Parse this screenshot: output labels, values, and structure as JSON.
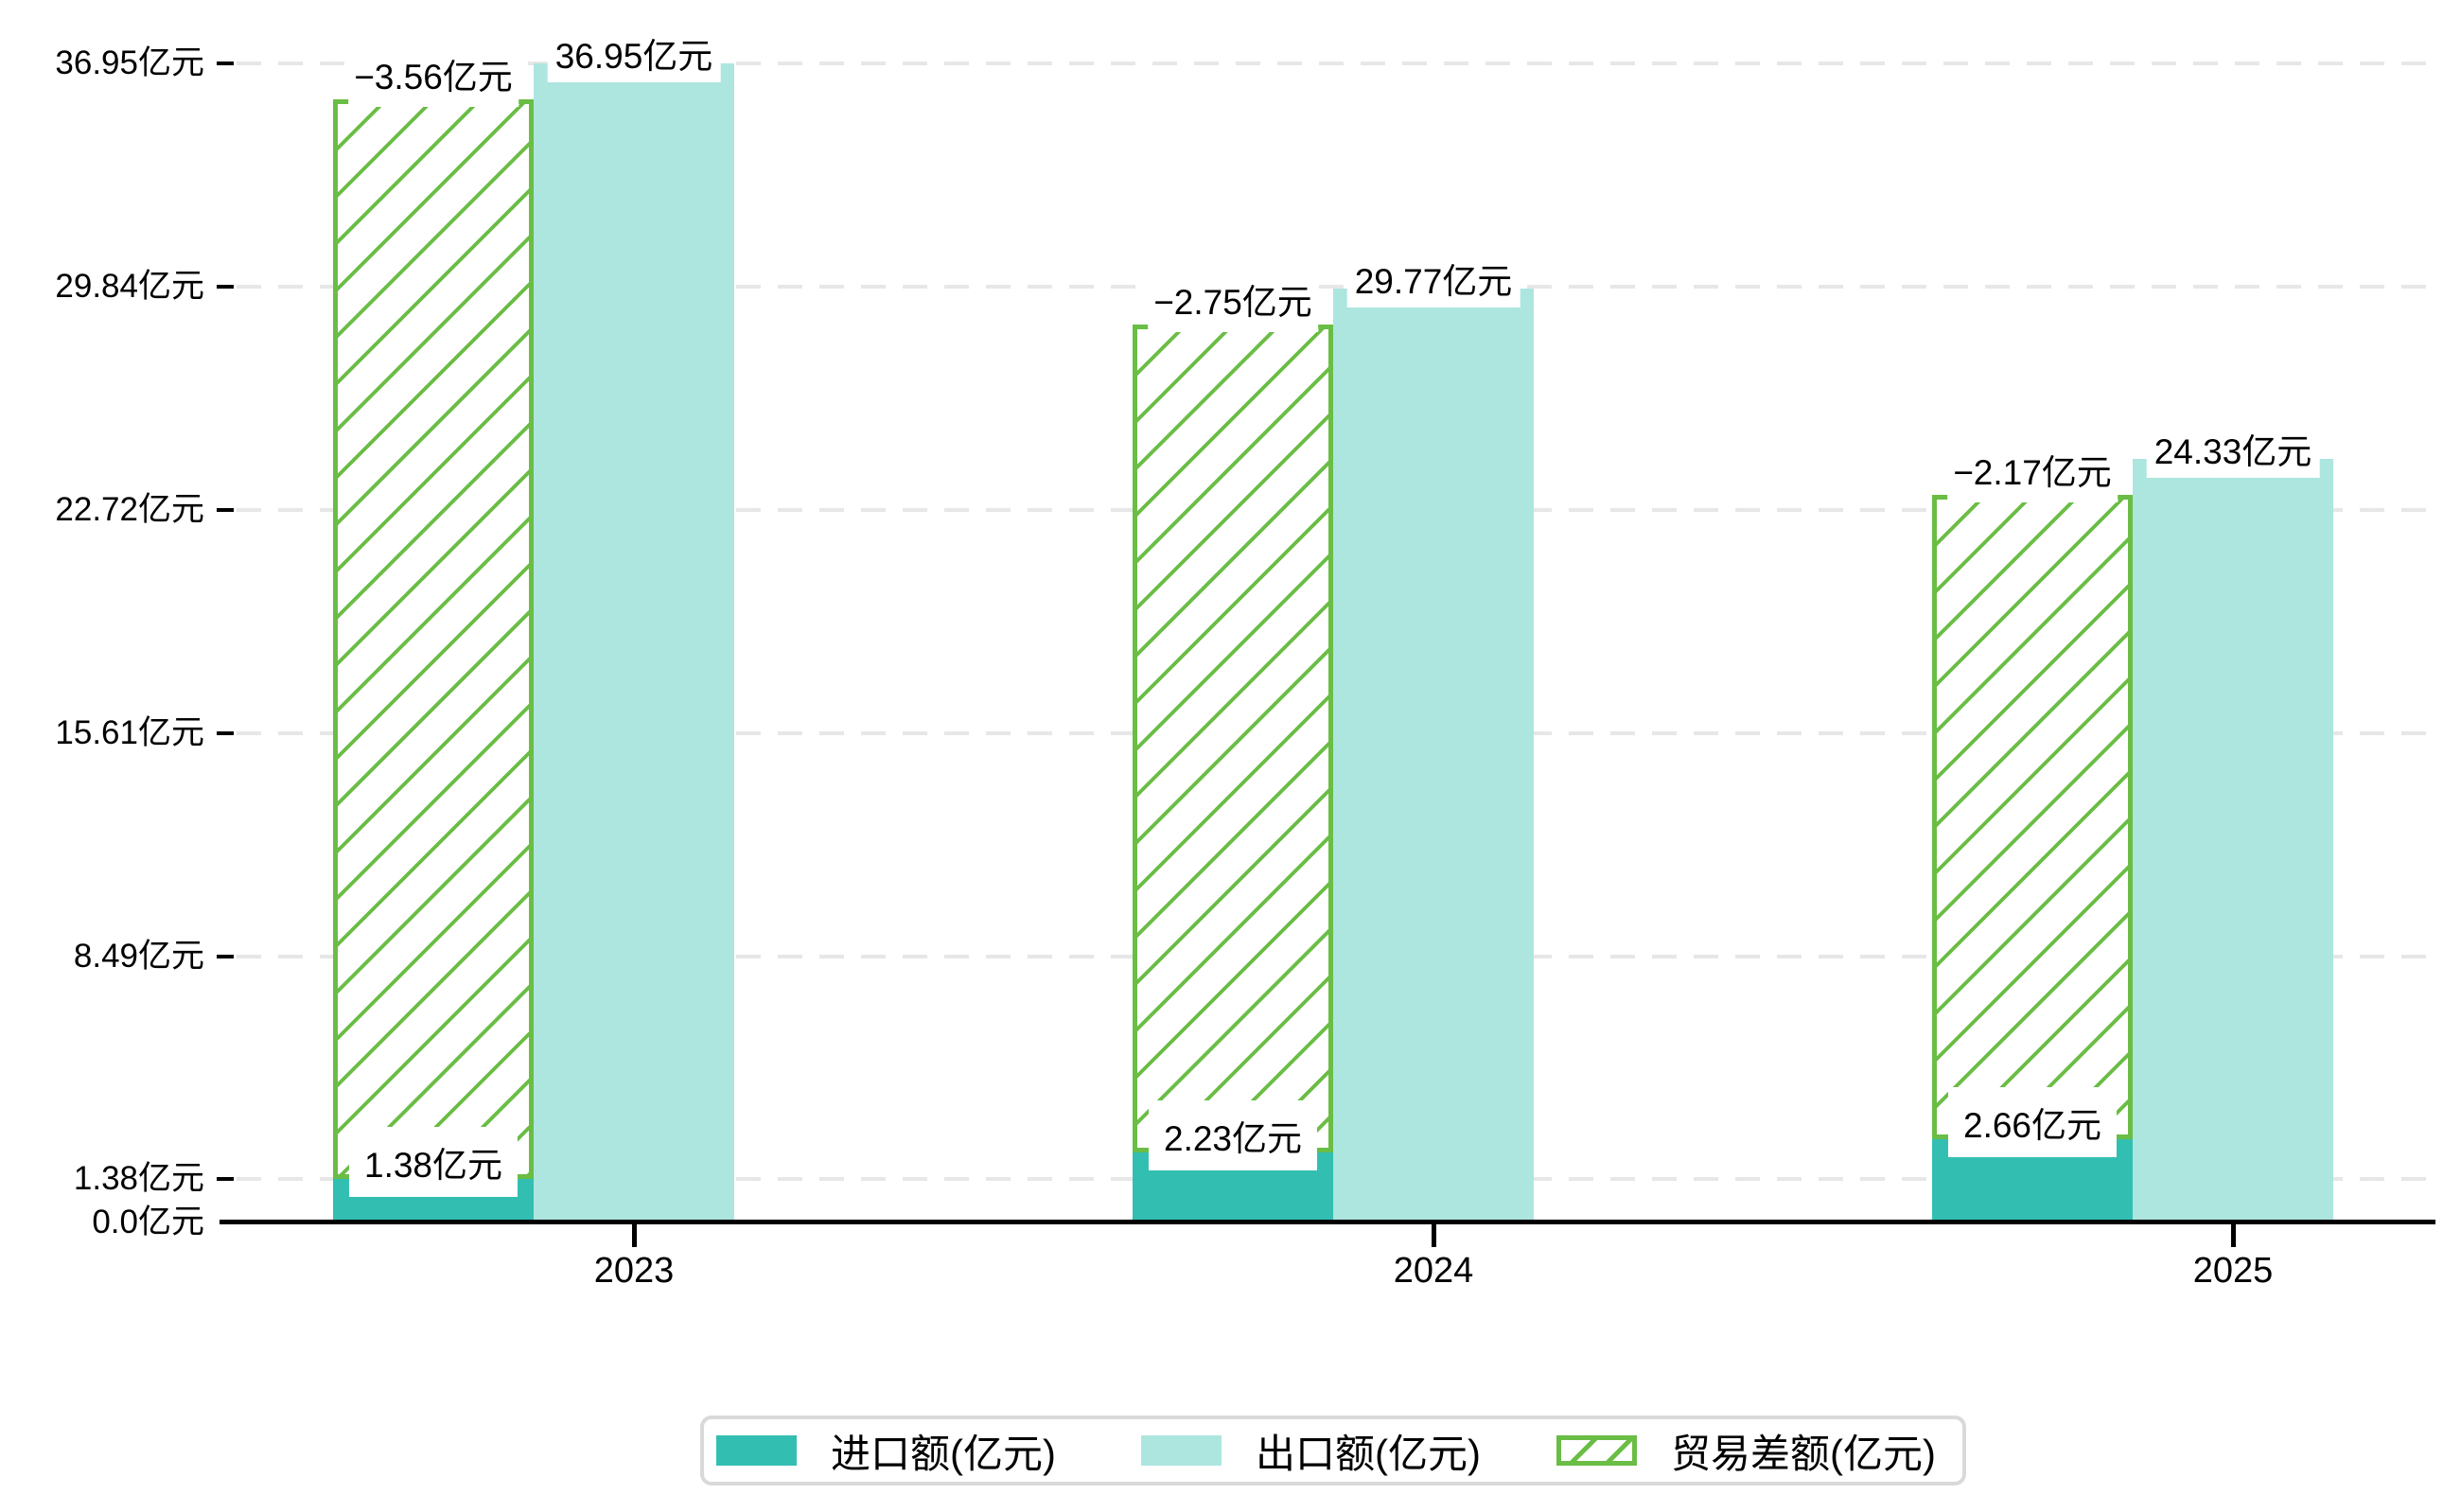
{
  "chart_data": {
    "type": "bar",
    "categories": [
      "2023",
      "2024",
      "2025"
    ],
    "unit": "亿元",
    "series": [
      {
        "name": "进口额(亿元)",
        "role": "import",
        "color": "#32bfb2",
        "values": [
          1.38,
          2.23,
          2.66
        ],
        "labels": [
          "1.38亿元",
          "2.23亿元",
          "2.66亿元"
        ]
      },
      {
        "name": "出口额(亿元)",
        "role": "export",
        "color": "#ace6df",
        "values": [
          36.95,
          29.77,
          24.33
        ],
        "labels": [
          "36.95亿元",
          "29.77亿元",
          "24.33亿元"
        ]
      },
      {
        "name": "贸易差额(亿元)",
        "role": "balance",
        "color": "#6abd45",
        "pattern": "diagonal-hatch",
        "values": [
          -3.56,
          -2.75,
          -2.17
        ],
        "labels": [
          "−3.56亿元",
          "−2.75亿元",
          "−2.17亿元"
        ]
      }
    ],
    "y_axis": {
      "ticks": [
        {
          "value": 0,
          "label": "0.0亿元"
        },
        {
          "value": 1.38,
          "label": "1.38亿元"
        },
        {
          "value": 8.49,
          "label": "8.49亿元"
        },
        {
          "value": 15.61,
          "label": "15.61亿元"
        },
        {
          "value": 22.72,
          "label": "22.72亿元"
        },
        {
          "value": 29.84,
          "label": "29.84亿元"
        },
        {
          "value": 36.95,
          "label": "36.95亿元"
        }
      ],
      "ylim": [
        0,
        37.6
      ],
      "gridlines": "dashed"
    },
    "legend": {
      "position": "bottom",
      "items": [
        "进口额(亿元)",
        "出口额(亿元)",
        "贸易差额(亿元)"
      ]
    },
    "colors": {
      "import": "#32bfb2",
      "export": "#ace6df",
      "balance_green": "#6abd45",
      "gridline": "#e7e7e7",
      "axis": "#000000",
      "legend_border": "#d9d9d9",
      "background": "#ffffff"
    }
  }
}
